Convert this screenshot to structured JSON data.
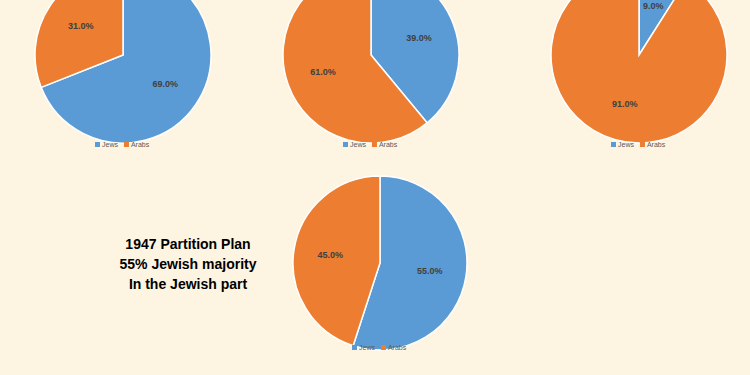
{
  "chart_data": [
    {
      "type": "pie",
      "categories": [
        "Jews",
        "Arabs"
      ],
      "values": [
        69,
        31
      ],
      "value_labels": [
        "69.0%",
        "31.0%"
      ],
      "colors": [
        "#5b9bd5",
        "#ed7d31"
      ],
      "data_labels": true,
      "legend": "bottom"
    },
    {
      "type": "pie",
      "categories": [
        "Jews",
        "Arabs"
      ],
      "values": [
        39,
        61
      ],
      "value_labels": [
        "39.0%",
        "61.0%"
      ],
      "colors": [
        "#5b9bd5",
        "#ed7d31"
      ],
      "data_labels": true,
      "legend": "bottom"
    },
    {
      "type": "pie",
      "categories": [
        "Jews",
        "Arabs"
      ],
      "values": [
        9,
        91
      ],
      "value_labels": [
        "9.0%",
        "91.0%"
      ],
      "colors": [
        "#5b9bd5",
        "#ed7d31"
      ],
      "data_labels": true,
      "legend": "bottom"
    },
    {
      "type": "pie",
      "categories": [
        "Jews",
        "Arabs"
      ],
      "values": [
        55,
        45
      ],
      "value_labels": [
        "55.0%",
        "45.0%"
      ],
      "colors": [
        "#5b9bd5",
        "#ed7d31"
      ],
      "data_labels": true,
      "legend": "bottom",
      "annotations": [
        "1947 Partition Plan",
        "55% Jewish majority",
        "In the Jewish part"
      ]
    }
  ]
}
